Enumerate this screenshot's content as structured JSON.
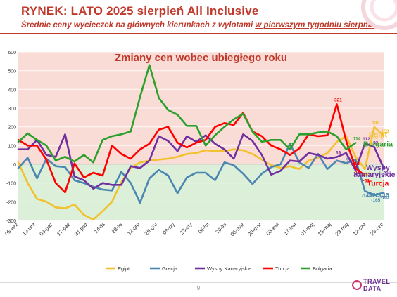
{
  "header": {
    "title": "RYNEK: LATO 2025 sierpień All Inclusive",
    "subtitle_pre": "Średnie ceny wycieczek na głównych kierunkach z wylotami ",
    "subtitle_underlined": "w pierwszym tygodniu sierpnia"
  },
  "footer": {
    "page_number": "9",
    "logo_line1": "TRAVEL",
    "logo_line2": "DATA"
  },
  "colors": {
    "accent": "#c0392b",
    "egipt": "#f2c12e",
    "grecja": "#4a86b0",
    "wyspy": "#7030a0",
    "turcja": "#ff0000",
    "bulgaria": "#2ca02c",
    "positive_bg": "#fadcd7",
    "negative_bg": "#dcefd8"
  },
  "chart_data": {
    "type": "line",
    "title": "Zmiany cen wobec ubiegłego roku",
    "ylim": [
      -300,
      600
    ],
    "yticks": [
      600,
      500,
      400,
      300,
      200,
      100,
      0,
      -100,
      -200,
      -300
    ],
    "x_labels": [
      "05-wrz",
      "19-wrz",
      "03-paź",
      "17-paź",
      "31-paź",
      "14-lis",
      "28-lis",
      "12-gru",
      "26-gru",
      "09-sty",
      "23-sty",
      "06-lut",
      "20-lut",
      "06-mar",
      "20-mar",
      "03-kwi",
      "17-kwi",
      "01-maj",
      "15-maj",
      "29-maj",
      "12-cze",
      "26-cze"
    ],
    "legend": [
      "Egipt",
      "Grecja",
      "Wyspy Kanaryjskie",
      "Turcja",
      "Bulgaria"
    ],
    "legend_position": "bottom",
    "end_labels": {
      "egipt": "Egipt",
      "bulgaria": "Bułgaria",
      "wyspy_line1": "Wyspy",
      "wyspy_line2": "Kanaryjskie",
      "turcja": "Turcja",
      "grecja": "Grecja"
    },
    "series": [
      {
        "name": "Egipt",
        "color": "#f2c12e",
        "values": [
          10,
          -100,
          -185,
          -200,
          -230,
          -235,
          -215,
          -270,
          -295,
          -250,
          -200,
          -95,
          -20,
          10,
          20,
          25,
          30,
          40,
          55,
          60,
          75,
          70,
          70,
          80,
          75,
          55,
          25,
          -5,
          -20,
          -10,
          -25,
          20,
          35,
          60,
          120,
          150,
          40,
          -26,
          199,
          153
        ]
      },
      {
        "name": "Grecja",
        "color": "#4a86b0",
        "values": [
          -20,
          35,
          -75,
          30,
          -10,
          -15,
          -85,
          -100,
          -120,
          -135,
          -140,
          -40,
          -100,
          -205,
          -75,
          -30,
          -60,
          -155,
          -70,
          -45,
          -45,
          -85,
          10,
          -5,
          -50,
          -105,
          -50,
          -15,
          0,
          110,
          10,
          -20,
          55,
          -25,
          20,
          6,
          25,
          -143,
          -165,
          -152
        ]
      },
      {
        "name": "Wyspy Kanaryjskie",
        "color": "#7030a0",
        "values": [
          80,
          80,
          130,
          50,
          40,
          160,
          -65,
          -85,
          -130,
          -100,
          -110,
          -110,
          -10,
          -20,
          20,
          150,
          125,
          70,
          150,
          120,
          155,
          110,
          80,
          30,
          160,
          125,
          50,
          -55,
          -35,
          20,
          15,
          60,
          50,
          30,
          39,
          60,
          -32,
          112,
          92,
          -20
        ]
      },
      {
        "name": "Turcja",
        "color": "#ff0000",
        "values": [
          130,
          100,
          100,
          25,
          -100,
          -150,
          5,
          -70,
          -45,
          -60,
          100,
          55,
          30,
          80,
          110,
          185,
          200,
          115,
          90,
          115,
          130,
          200,
          220,
          210,
          275,
          175,
          150,
          100,
          80,
          50,
          85,
          160,
          150,
          155,
          321,
          125,
          -19,
          -61
        ]
      },
      {
        "name": "Bulgaria",
        "color": "#2ca02c",
        "values": [
          120,
          165,
          130,
          100,
          20,
          40,
          15,
          50,
          10,
          130,
          150,
          160,
          175,
          360,
          530,
          355,
          290,
          265,
          205,
          205,
          100,
          155,
          200,
          240,
          270,
          175,
          120,
          130,
          130,
          80,
          160,
          160,
          170,
          175,
          150,
          80,
          114
        ]
      }
    ],
    "value_labels": [
      {
        "series": "turcja",
        "text": "321"
      },
      {
        "series": "egipt",
        "text": "199"
      },
      {
        "series": "egipt",
        "text": "153"
      },
      {
        "series": "bulgaria",
        "text": "17"
      },
      {
        "series": "turcja",
        "text": "15"
      },
      {
        "series": "turcja",
        "text": "12"
      },
      {
        "series": "wyspy",
        "text": "39"
      },
      {
        "series": "wyspy",
        "text": "112"
      },
      {
        "series": "wyspy",
        "text": "92"
      },
      {
        "series": "bulgaria",
        "text": "114"
      },
      {
        "series": "grecja",
        "text": "6"
      },
      {
        "series": "egipt",
        "text": "2"
      },
      {
        "series": "turcja",
        "text": "-19"
      },
      {
        "series": "egipt",
        "text": "-26"
      },
      {
        "series": "wyspy",
        "text": "-32"
      },
      {
        "series": "wyspy",
        "text": "-20"
      },
      {
        "series": "turcja",
        "text": "-61"
      },
      {
        "series": "grecja",
        "text": "-143"
      },
      {
        "series": "grecja",
        "text": "-165"
      },
      {
        "series": "grecja",
        "text": "-152"
      }
    ]
  }
}
